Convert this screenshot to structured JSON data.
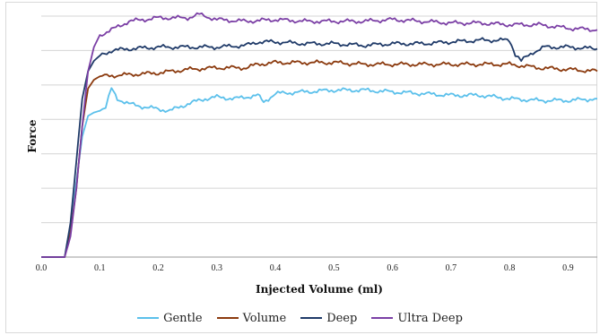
{
  "chart_data": {
    "type": "line",
    "title": "",
    "xlabel": "Injected Volume (ml)",
    "ylabel": "Force",
    "xlim": [
      0,
      0.95
    ],
    "ylim": [
      0,
      7
    ],
    "x_ticks": [
      "0.0",
      "0.1",
      "0.2",
      "0.3",
      "0.4",
      "0.5",
      "0.6",
      "0.7",
      "0.8",
      "0.9"
    ],
    "grid": true,
    "legend_position": "bottom",
    "series": [
      {
        "name": "Gentle",
        "color": "#5bc0eb",
        "points": [
          [
            0.0,
            0.0
          ],
          [
            0.04,
            0.0
          ],
          [
            0.05,
            0.9
          ],
          [
            0.06,
            2.2
          ],
          [
            0.07,
            3.5
          ],
          [
            0.08,
            4.1
          ],
          [
            0.09,
            4.2
          ],
          [
            0.1,
            4.25
          ],
          [
            0.11,
            4.35
          ],
          [
            0.12,
            4.9
          ],
          [
            0.13,
            4.6
          ],
          [
            0.15,
            4.45
          ],
          [
            0.18,
            4.35
          ],
          [
            0.2,
            4.3
          ],
          [
            0.22,
            4.25
          ],
          [
            0.25,
            4.45
          ],
          [
            0.28,
            4.6
          ],
          [
            0.3,
            4.65
          ],
          [
            0.33,
            4.6
          ],
          [
            0.35,
            4.65
          ],
          [
            0.37,
            4.7
          ],
          [
            0.38,
            4.5
          ],
          [
            0.4,
            4.75
          ],
          [
            0.45,
            4.8
          ],
          [
            0.5,
            4.85
          ],
          [
            0.55,
            4.85
          ],
          [
            0.6,
            4.8
          ],
          [
            0.65,
            4.75
          ],
          [
            0.7,
            4.7
          ],
          [
            0.75,
            4.7
          ],
          [
            0.8,
            4.6
          ],
          [
            0.85,
            4.55
          ],
          [
            0.9,
            4.55
          ],
          [
            0.95,
            4.6
          ]
        ]
      },
      {
        "name": "Volume",
        "color": "#8b3a0e",
        "points": [
          [
            0.0,
            0.0
          ],
          [
            0.04,
            0.0
          ],
          [
            0.05,
            0.7
          ],
          [
            0.06,
            2.0
          ],
          [
            0.07,
            3.8
          ],
          [
            0.08,
            4.9
          ],
          [
            0.09,
            5.15
          ],
          [
            0.1,
            5.25
          ],
          [
            0.15,
            5.3
          ],
          [
            0.2,
            5.35
          ],
          [
            0.25,
            5.45
          ],
          [
            0.3,
            5.5
          ],
          [
            0.35,
            5.5
          ],
          [
            0.37,
            5.6
          ],
          [
            0.4,
            5.65
          ],
          [
            0.45,
            5.65
          ],
          [
            0.5,
            5.65
          ],
          [
            0.55,
            5.6
          ],
          [
            0.6,
            5.6
          ],
          [
            0.65,
            5.6
          ],
          [
            0.7,
            5.6
          ],
          [
            0.75,
            5.6
          ],
          [
            0.8,
            5.6
          ],
          [
            0.85,
            5.5
          ],
          [
            0.9,
            5.45
          ],
          [
            0.95,
            5.4
          ]
        ]
      },
      {
        "name": "Deep",
        "color": "#1f3a68",
        "points": [
          [
            0.0,
            0.0
          ],
          [
            0.04,
            0.0
          ],
          [
            0.05,
            1.0
          ],
          [
            0.06,
            2.8
          ],
          [
            0.07,
            4.6
          ],
          [
            0.08,
            5.4
          ],
          [
            0.09,
            5.7
          ],
          [
            0.1,
            5.85
          ],
          [
            0.12,
            6.0
          ],
          [
            0.15,
            6.05
          ],
          [
            0.2,
            6.1
          ],
          [
            0.25,
            6.1
          ],
          [
            0.3,
            6.1
          ],
          [
            0.35,
            6.15
          ],
          [
            0.37,
            6.25
          ],
          [
            0.4,
            6.25
          ],
          [
            0.45,
            6.2
          ],
          [
            0.5,
            6.2
          ],
          [
            0.55,
            6.15
          ],
          [
            0.6,
            6.2
          ],
          [
            0.65,
            6.2
          ],
          [
            0.7,
            6.25
          ],
          [
            0.75,
            6.3
          ],
          [
            0.8,
            6.3
          ],
          [
            0.81,
            5.9
          ],
          [
            0.82,
            5.7
          ],
          [
            0.84,
            5.95
          ],
          [
            0.86,
            6.1
          ],
          [
            0.9,
            6.1
          ],
          [
            0.95,
            6.05
          ]
        ]
      },
      {
        "name": "Ultra Deep",
        "color": "#7b3fa5",
        "points": [
          [
            0.0,
            0.0
          ],
          [
            0.04,
            0.0
          ],
          [
            0.05,
            0.6
          ],
          [
            0.06,
            2.0
          ],
          [
            0.07,
            3.8
          ],
          [
            0.08,
            5.4
          ],
          [
            0.09,
            6.1
          ],
          [
            0.1,
            6.45
          ],
          [
            0.12,
            6.6
          ],
          [
            0.15,
            6.85
          ],
          [
            0.2,
            6.95
          ],
          [
            0.25,
            6.95
          ],
          [
            0.27,
            7.05
          ],
          [
            0.3,
            6.9
          ],
          [
            0.35,
            6.85
          ],
          [
            0.4,
            6.9
          ],
          [
            0.45,
            6.85
          ],
          [
            0.5,
            6.85
          ],
          [
            0.55,
            6.85
          ],
          [
            0.6,
            6.9
          ],
          [
            0.65,
            6.85
          ],
          [
            0.7,
            6.8
          ],
          [
            0.75,
            6.8
          ],
          [
            0.8,
            6.75
          ],
          [
            0.85,
            6.75
          ],
          [
            0.9,
            6.65
          ],
          [
            0.95,
            6.6
          ]
        ]
      }
    ]
  }
}
